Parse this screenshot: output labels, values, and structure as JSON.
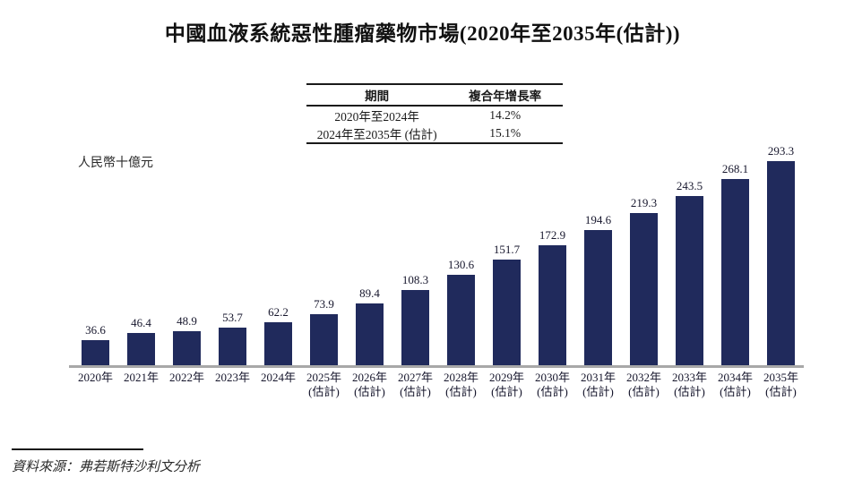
{
  "page": {
    "title": "中國血液系統惡性腫瘤藥物市場(2020年至2035年(估計))",
    "source_note": "資料來源：弗若斯特沙利文分析"
  },
  "cagr_table": {
    "headers": {
      "period": "期間",
      "cagr": "複合年增長率"
    },
    "rows": [
      {
        "period": "2020年至2024年",
        "cagr": "14.2%"
      },
      {
        "period": "2024年至2035年 (估計)",
        "cagr": "15.1%"
      }
    ]
  },
  "chart_data": {
    "type": "bar",
    "title": "中國血液系統惡性腫瘤藥物市場(2020年至2035年(估計))",
    "ylabel": "人民幣十億元",
    "xlabel": "",
    "ylim": [
      0,
      300
    ],
    "grid": false,
    "legend": "none",
    "bar_color": "#202A5C",
    "axis_line_color": "#A8A8A8",
    "bars": [
      {
        "year": "2020年",
        "note": "",
        "value": 36.6
      },
      {
        "year": "2021年",
        "note": "",
        "value": 46.4
      },
      {
        "year": "2022年",
        "note": "",
        "value": 48.9
      },
      {
        "year": "2023年",
        "note": "",
        "value": 53.7
      },
      {
        "year": "2024年",
        "note": "",
        "value": 62.2
      },
      {
        "year": "2025年",
        "note": "(估計)",
        "value": 73.9
      },
      {
        "year": "2026年",
        "note": "(估計)",
        "value": 89.4
      },
      {
        "year": "2027年",
        "note": "(估計)",
        "value": 108.3
      },
      {
        "year": "2028年",
        "note": "(估計)",
        "value": 130.6
      },
      {
        "year": "2029年",
        "note": "(估計)",
        "value": 151.7
      },
      {
        "year": "2030年",
        "note": "(估計)",
        "value": 172.9
      },
      {
        "year": "2031年",
        "note": "(估計)",
        "value": 194.6
      },
      {
        "year": "2032年",
        "note": "(估計)",
        "value": 219.3
      },
      {
        "year": "2033年",
        "note": "(估計)",
        "value": 243.5
      },
      {
        "year": "2034年",
        "note": "(估計)",
        "value": 268.1
      },
      {
        "year": "2035年",
        "note": "(估計)",
        "value": 293.3
      }
    ]
  }
}
